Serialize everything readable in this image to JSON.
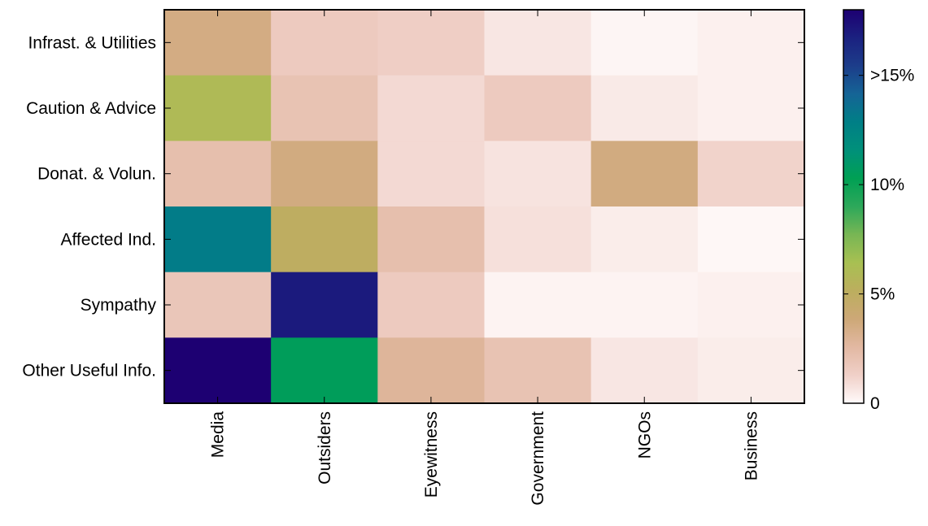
{
  "chart_data": {
    "type": "heatmap",
    "x_categories": [
      "Media",
      "Outsiders",
      "Eyewitness",
      "Government",
      "NGOs",
      "Business"
    ],
    "y_categories": [
      "Infrast. & Utilities",
      "Caution & Advice",
      "Donat. & Volun.",
      "Affected Ind.",
      "Sympathy",
      "Other Useful Info."
    ],
    "values": [
      [
        3.5,
        1.6,
        1.4,
        0.6,
        0.15,
        0.3
      ],
      [
        6.0,
        2.0,
        1.0,
        1.6,
        0.5,
        0.3
      ],
      [
        2.2,
        3.6,
        1.0,
        0.7,
        3.6,
        1.2
      ],
      [
        13.0,
        5.0,
        2.2,
        0.8,
        0.4,
        0.1
      ],
      [
        1.8,
        17.0,
        1.6,
        0.2,
        0.2,
        0.3
      ],
      [
        18.0,
        10.5,
        2.8,
        2.0,
        0.6,
        0.4
      ]
    ],
    "colorbar": {
      "range": [
        0,
        18
      ],
      "ticks": [
        {
          "value": 0,
          "label": "0"
        },
        {
          "value": 5,
          "label": "5%"
        },
        {
          "value": 10,
          "label": "10%"
        },
        {
          "value": 15,
          "label": ">15%"
        }
      ]
    },
    "colors": {
      "colormap": [
        "#fffafa",
        "#f0d0c8",
        "#e2b8a2",
        "#cda877",
        "#bcae5e",
        "#a8c052",
        "#78b654",
        "#2da85a",
        "#00a054",
        "#00907a",
        "#007f86",
        "#156496",
        "#1c3d8a",
        "#1b2180",
        "#1d0072"
      ]
    },
    "title": "",
    "xlabel": "",
    "ylabel": ""
  }
}
